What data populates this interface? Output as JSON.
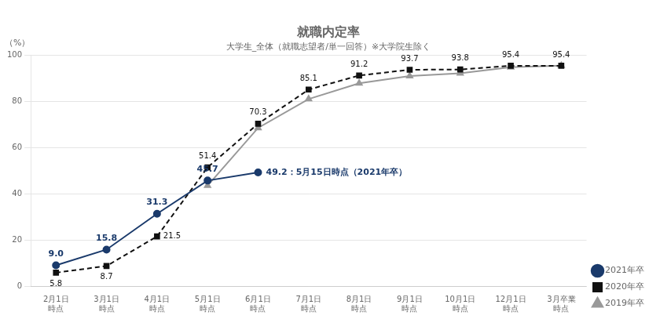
{
  "chart_data": {
    "type": "line",
    "title": "就職内定率",
    "subtitle": "大学生_全体（就職志望者/単一回答）※大学院生除く",
    "ylabel": "（%）",
    "categories": [
      "2月1日\n時点",
      "3月1日\n時点",
      "4月1日\n時点",
      "5月1日\n時点",
      "6月1日\n時点",
      "7月1日\n時点",
      "8月1日\n時点",
      "9月1日\n時点",
      "10月1日\n時点",
      "12月1日\n時点",
      "3月卒業\n時点"
    ],
    "series": [
      {
        "name": "2021年卒",
        "color": "#1a3a6b",
        "marker": "circle",
        "line_style": "solid",
        "values": [
          9.0,
          15.8,
          31.3,
          45.7,
          49.2,
          null,
          null,
          null,
          null,
          null,
          null
        ],
        "value_labels": [
          "9.0",
          "15.8",
          "31.3",
          "45.7",
          null,
          null,
          null,
          null,
          null,
          null,
          null
        ]
      },
      {
        "name": "2020年卒",
        "color": "#111111",
        "marker": "square",
        "line_style": "dashed",
        "values": [
          5.8,
          8.7,
          21.5,
          51.4,
          70.3,
          85.1,
          91.2,
          93.7,
          93.8,
          95.4,
          95.4
        ],
        "data_labels": true
      },
      {
        "name": "2019年卒",
        "color": "#999999",
        "marker": "triangle",
        "line_style": "solid",
        "values": [
          null,
          null,
          null,
          43.5,
          68.5,
          81.0,
          87.8,
          91.0,
          92.2,
          94.8,
          95.5
        ]
      }
    ],
    "annotation": "49.2：5月15日時点（2021年卒）",
    "ylim": [
      0,
      100
    ],
    "yticks": [
      0,
      20,
      40,
      60,
      80,
      100
    ],
    "grid": "y",
    "legend": "lower right"
  }
}
